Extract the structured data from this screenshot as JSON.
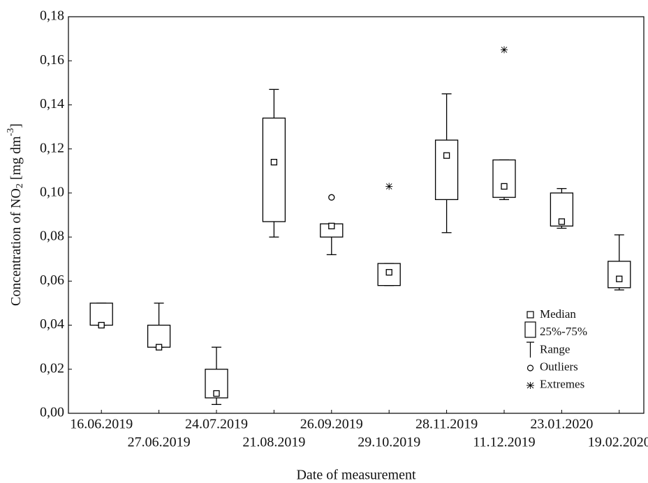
{
  "chart_data": {
    "type": "box",
    "ylabel": [
      "Concentration of NO",
      "2",
      " [mg dm",
      "-3",
      "]"
    ],
    "xlabel": "Date of measurement",
    "categories": [
      "16.06.2019",
      "27.06.2019",
      "24.07.2019",
      "21.08.2019",
      "26.09.2019",
      "29.10.2019",
      "28.11.2019",
      "11.12.2019",
      "23.01.2020",
      "19.02.2020"
    ],
    "boxes": [
      {
        "min": 0.04,
        "q1": 0.04,
        "median": 0.04,
        "q3": 0.05,
        "max": 0.05
      },
      {
        "min": 0.03,
        "q1": 0.03,
        "median": 0.03,
        "q3": 0.04,
        "max": 0.05
      },
      {
        "min": 0.004,
        "q1": 0.007,
        "median": 0.009,
        "q3": 0.02,
        "max": 0.03
      },
      {
        "min": 0.08,
        "q1": 0.087,
        "median": 0.114,
        "q3": 0.134,
        "max": 0.147
      },
      {
        "min": 0.072,
        "q1": 0.08,
        "median": 0.085,
        "q3": 0.086,
        "max": 0.086,
        "outliers": [
          0.098
        ]
      },
      {
        "min": 0.058,
        "q1": 0.058,
        "median": 0.064,
        "q3": 0.068,
        "max": 0.068,
        "extremes": [
          0.103
        ]
      },
      {
        "min": 0.082,
        "q1": 0.097,
        "median": 0.117,
        "q3": 0.124,
        "max": 0.145
      },
      {
        "min": 0.097,
        "q1": 0.098,
        "median": 0.103,
        "q3": 0.115,
        "max": 0.115,
        "extremes": [
          0.165
        ]
      },
      {
        "min": 0.084,
        "q1": 0.085,
        "median": 0.087,
        "q3": 0.1,
        "max": 0.102
      },
      {
        "min": 0.056,
        "q1": 0.057,
        "median": 0.061,
        "q3": 0.069,
        "max": 0.081
      }
    ],
    "ylim": [
      0,
      0.18
    ],
    "yticks": [
      {
        "value": 0,
        "label": "0,00"
      },
      {
        "value": 0.02,
        "label": "0,02"
      },
      {
        "value": 0.04,
        "label": "0,04"
      },
      {
        "value": 0.06,
        "label": "0,06"
      },
      {
        "value": 0.08,
        "label": "0,08"
      },
      {
        "value": 0.1,
        "label": "0,10"
      },
      {
        "value": 0.12,
        "label": "0,12"
      },
      {
        "value": 0.14,
        "label": "0,14"
      },
      {
        "value": 0.16,
        "label": "0,16"
      },
      {
        "value": 0.18,
        "label": "0,18"
      }
    ],
    "legend": [
      "Median",
      "25%-75%",
      "Range",
      "Outliers",
      "Extremes"
    ],
    "color": "#000000"
  }
}
